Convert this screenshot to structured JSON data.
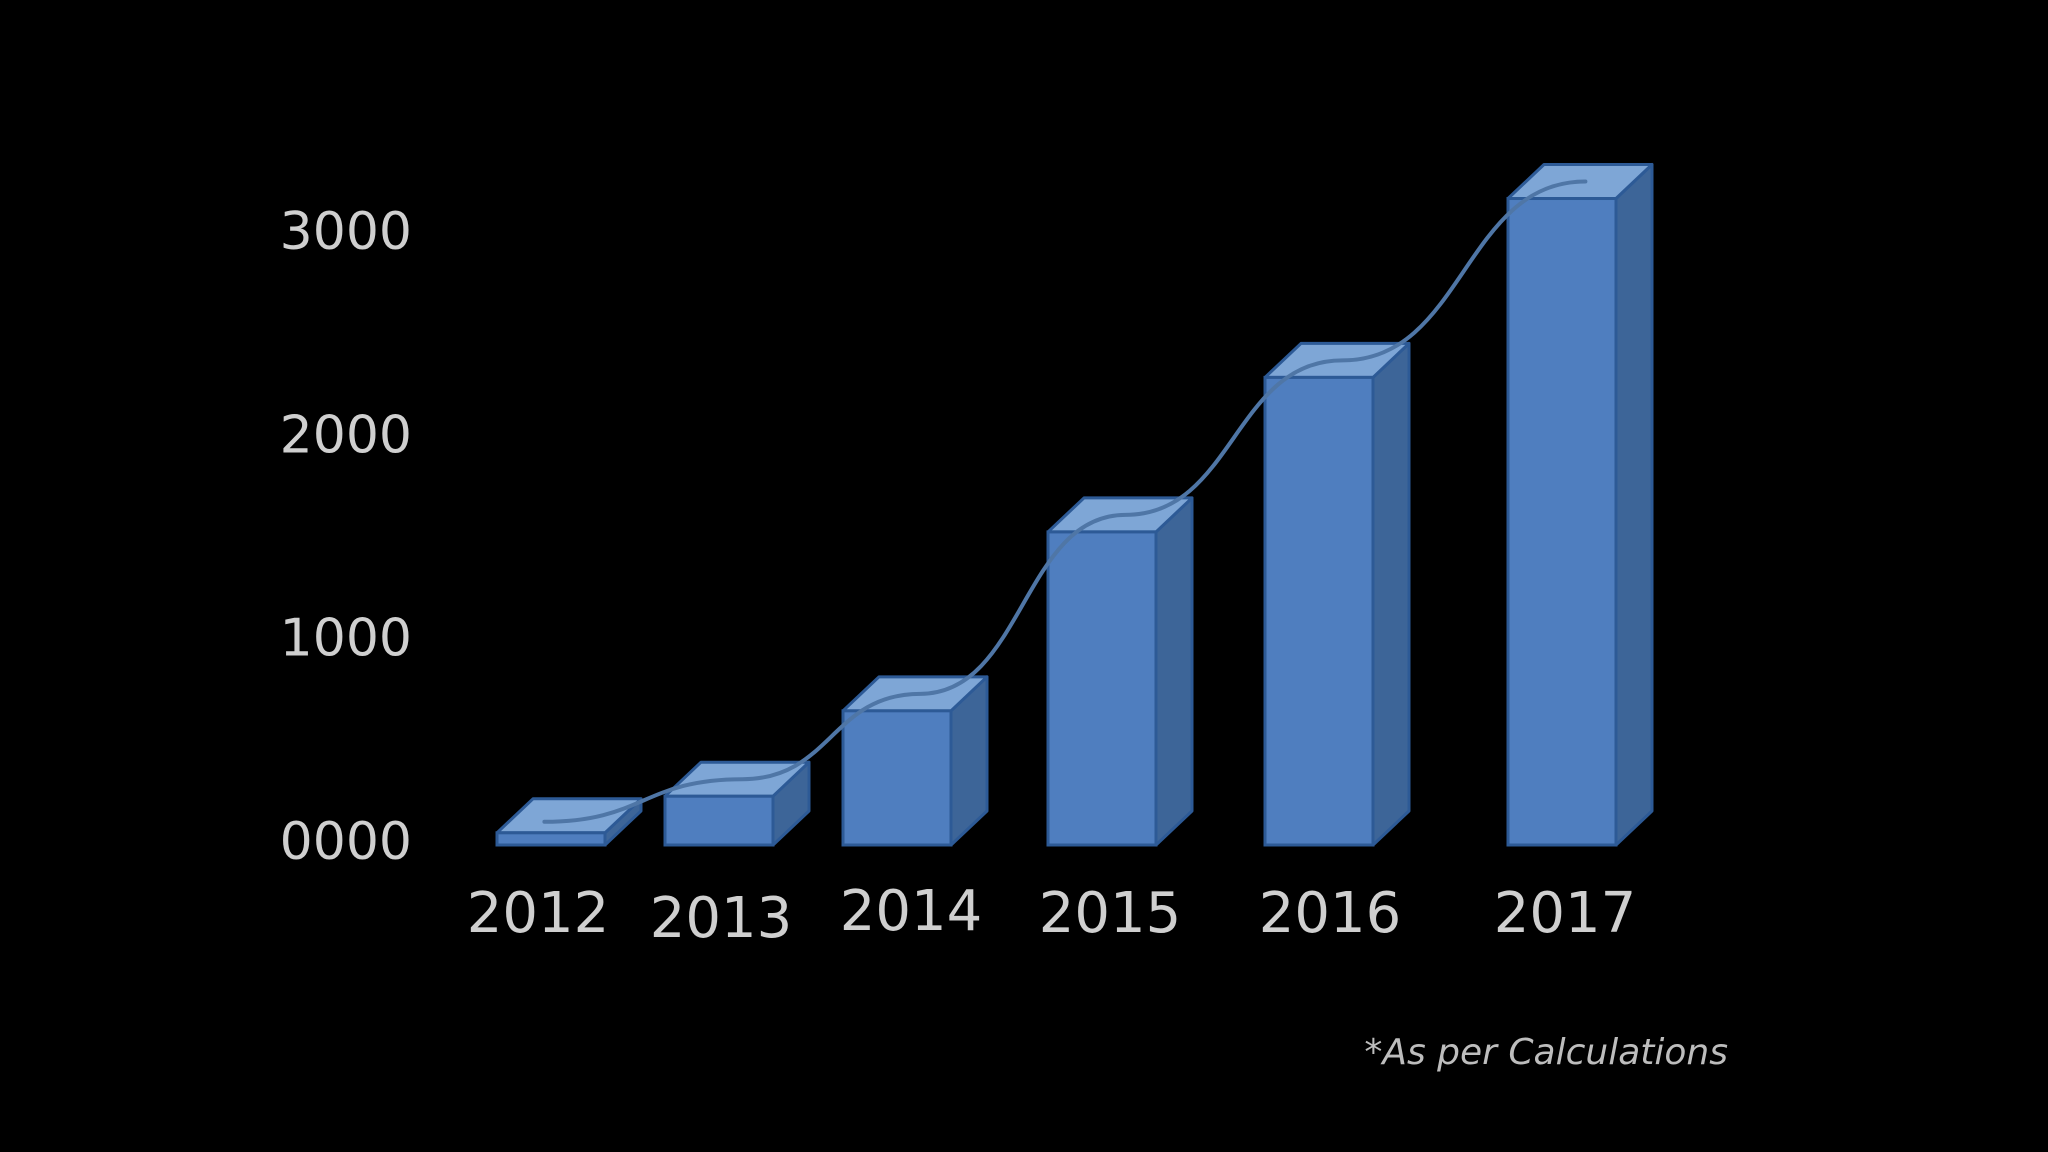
{
  "chart_data": {
    "type": "bar",
    "title": "",
    "xlabel": "",
    "ylabel": "",
    "categories": [
      "2012",
      "2013",
      "2014",
      "2015",
      "2016",
      "2017"
    ],
    "values": [
      60,
      240,
      660,
      1540,
      2300,
      3180
    ],
    "y_ticks": [
      {
        "value": 0,
        "label": "0000"
      },
      {
        "value": 1000,
        "label": "1000"
      },
      {
        "value": 2000,
        "label": "2000"
      },
      {
        "value": 3000,
        "label": "3000"
      }
    ],
    "ylim": [
      0,
      3300
    ],
    "grid": false,
    "style": "3d-columns",
    "trend_line": true,
    "colors": {
      "background": "#000000",
      "bar_front": "#4f7ebf",
      "bar_top": "#7ea6d6",
      "bar_side": "#3d6598",
      "bar_stroke": "#2d5a96",
      "trend_line": "#4f76a6",
      "text": "#cfcfcf"
    }
  },
  "footnote": "*As per Calculations"
}
